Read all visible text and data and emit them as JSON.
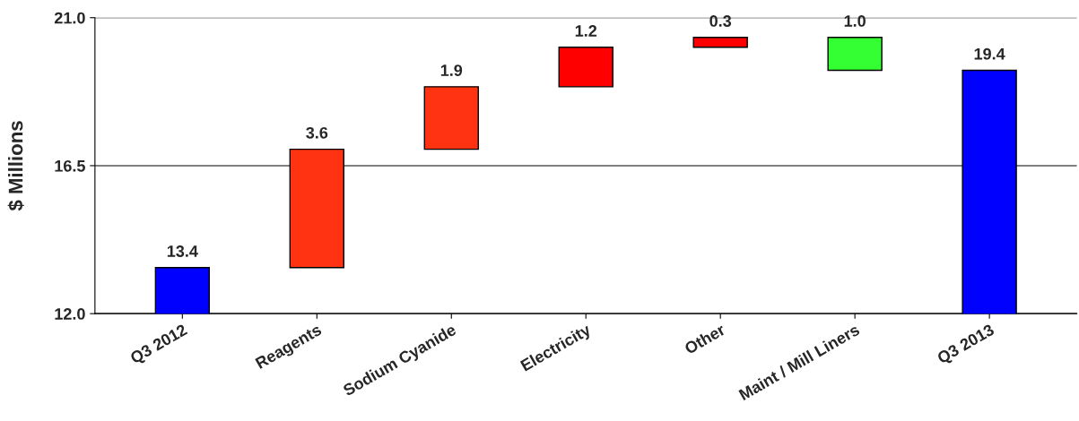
{
  "chart_data": {
    "type": "bar",
    "ylabel": "$ Millions",
    "categories": [
      "Q3 2012",
      "Reagents",
      "Sodium Cyanide",
      "Electricity",
      "Other",
      "Maint / Mill Liners",
      "Q3 2013"
    ],
    "values": [
      13.4,
      3.6,
      1.9,
      1.2,
      0.3,
      -1.0,
      19.4
    ],
    "base": [
      null,
      13.4,
      17.0,
      18.9,
      20.1,
      20.4,
      null
    ],
    "colors": [
      "#0000ff",
      "#ff3311",
      "#ff3311",
      "#ff0000",
      "#ff0000",
      "#33ff33",
      "#0000ff"
    ],
    "value_labels": [
      "13.4",
      "3.6",
      "1.9",
      "1.2",
      "0.3",
      "1.0",
      "19.4"
    ],
    "ylim": [
      12.0,
      21.0
    ],
    "yticks": [
      {
        "value": 12.0,
        "label": "12.0"
      },
      {
        "value": 16.5,
        "label": "16.5"
      },
      {
        "value": 21.0,
        "label": "21.0"
      }
    ],
    "grid": "y"
  }
}
